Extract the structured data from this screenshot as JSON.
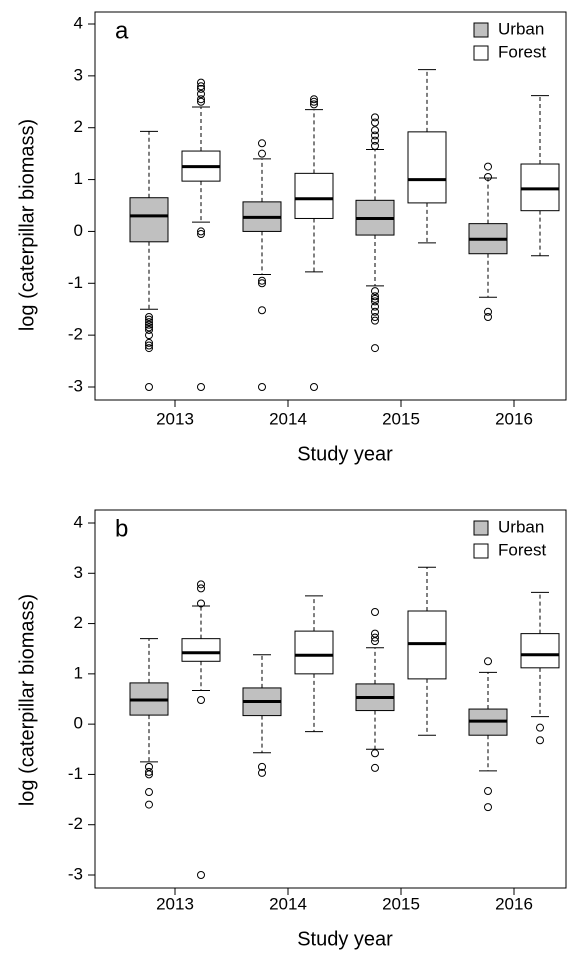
{
  "chart_data": [
    {
      "type": "box",
      "title": "a",
      "x_label": "Study year",
      "y_label": "log (caterpillar  biomass)",
      "categories": [
        "2013",
        "2014",
        "2015",
        "2016"
      ],
      "ylim": [
        -3,
        4
      ],
      "yticks": [
        -3,
        -2,
        -1,
        0,
        1,
        2,
        3,
        4
      ],
      "legend": "top-right",
      "series": [
        {
          "name": "Urban",
          "color": "#c0c0c0",
          "values": [
            {
              "whislo": -1.5,
              "q1": -0.2,
              "med": 0.3,
              "q3": 0.65,
              "whishi": 1.93,
              "fliers": [
                -1.65,
                -1.7,
                -1.75,
                -1.8,
                -1.85,
                -1.9,
                -2.0,
                -2.15,
                -2.2,
                -2.25,
                -3
              ]
            },
            {
              "whislo": -0.83,
              "q1": 0,
              "med": 0.27,
              "q3": 0.57,
              "whishi": 1.4,
              "fliers": [
                1.5,
                1.7,
                -0.95,
                -1.0,
                -1.52,
                -3
              ]
            },
            {
              "whislo": -1.05,
              "q1": -0.07,
              "med": 0.25,
              "q3": 0.6,
              "whishi": 1.58,
              "fliers": [
                1.65,
                1.75,
                1.85,
                1.95,
                2.1,
                2.2,
                -1.15,
                -1.25,
                -1.3,
                -1.35,
                -1.45,
                -1.55,
                -1.65,
                -1.72,
                -2.25
              ]
            },
            {
              "whislo": -1.27,
              "q1": -0.43,
              "med": -0.15,
              "q3": 0.15,
              "whishi": 1.03,
              "fliers": [
                1.05,
                1.25,
                -1.55,
                -1.65
              ]
            }
          ]
        },
        {
          "name": "Forest",
          "color": "#ffffff",
          "values": [
            {
              "whislo": 0.18,
              "q1": 0.97,
              "med": 1.25,
              "q3": 1.55,
              "whishi": 2.4,
              "fliers": [
                2.5,
                2.55,
                2.65,
                2.75,
                2.8,
                2.87,
                0,
                -0.05,
                -3
              ]
            },
            {
              "whislo": -0.78,
              "q1": 0.25,
              "med": 0.63,
              "q3": 1.12,
              "whishi": 2.35,
              "fliers": [
                2.45,
                2.5,
                2.55,
                -3
              ]
            },
            {
              "whislo": -0.22,
              "q1": 0.55,
              "med": 1.0,
              "q3": 1.92,
              "whishi": 3.12,
              "fliers": []
            },
            {
              "whislo": -0.47,
              "q1": 0.4,
              "med": 0.82,
              "q3": 1.3,
              "whishi": 2.62,
              "fliers": []
            }
          ]
        }
      ]
    },
    {
      "type": "box",
      "title": "b",
      "x_label": "Study year",
      "y_label": "log (caterpillar  biomass)",
      "categories": [
        "2013",
        "2014",
        "2015",
        "2016"
      ],
      "ylim": [
        -3,
        4
      ],
      "yticks": [
        -3,
        -2,
        -1,
        0,
        1,
        2,
        3,
        4
      ],
      "legend": "top-right",
      "series": [
        {
          "name": "Urban",
          "color": "#c0c0c0",
          "values": [
            {
              "whislo": -0.75,
              "q1": 0.18,
              "med": 0.48,
              "q3": 0.82,
              "whishi": 1.7,
              "fliers": [
                -0.85,
                -0.95,
                -1.0,
                -1.35,
                -1.6
              ]
            },
            {
              "whislo": -0.57,
              "q1": 0.17,
              "med": 0.45,
              "q3": 0.72,
              "whishi": 1.38,
              "fliers": [
                -0.85,
                -0.97
              ]
            },
            {
              "whislo": -0.5,
              "q1": 0.27,
              "med": 0.53,
              "q3": 0.8,
              "whishi": 1.52,
              "fliers": [
                1.65,
                1.72,
                1.8,
                2.23,
                -0.58,
                -0.87
              ]
            },
            {
              "whislo": -0.93,
              "q1": -0.22,
              "med": 0.06,
              "q3": 0.3,
              "whishi": 1.03,
              "fliers": [
                1.25,
                -1.33,
                -1.65
              ]
            }
          ]
        },
        {
          "name": "Forest",
          "color": "#ffffff",
          "values": [
            {
              "whislo": 0.67,
              "q1": 1.25,
              "med": 1.42,
              "q3": 1.7,
              "whishi": 2.35,
              "fliers": [
                2.4,
                2.7,
                2.78,
                0.48,
                -3
              ]
            },
            {
              "whislo": -0.15,
              "q1": 1.0,
              "med": 1.37,
              "q3": 1.85,
              "whishi": 2.55,
              "fliers": []
            },
            {
              "whislo": -0.22,
              "q1": 0.9,
              "med": 1.6,
              "q3": 2.25,
              "whishi": 3.12,
              "fliers": []
            },
            {
              "whislo": 0.15,
              "q1": 1.12,
              "med": 1.38,
              "q3": 1.8,
              "whishi": 2.62,
              "fliers": [
                -0.07,
                -0.32
              ]
            }
          ]
        }
      ]
    }
  ]
}
